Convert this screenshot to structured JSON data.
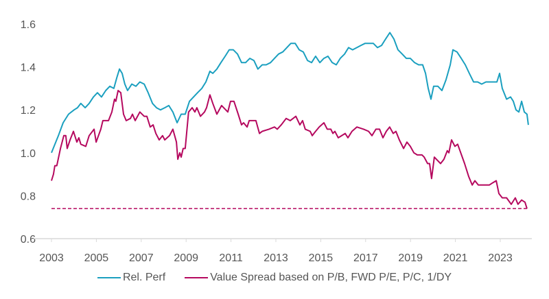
{
  "chart_data": {
    "type": "line",
    "title": "",
    "xlabel": "",
    "ylabel": "",
    "xlim": [
      2002.2,
      2024.5
    ],
    "ylim": [
      0.6,
      1.6
    ],
    "yticks": [
      "0.6",
      "0.8",
      "1.0",
      "1.2",
      "1.4",
      "1.6"
    ],
    "xticks": [
      "2003",
      "2005",
      "2007",
      "2009",
      "2011",
      "2013",
      "2015",
      "2017",
      "2019",
      "2021",
      "2023"
    ],
    "grid": false,
    "legend_position": "bottom",
    "series": [
      {
        "name": "Rel. Perf",
        "color": "#1a9fbf",
        "x": [
          2003.0,
          2003.31,
          2003.52,
          2003.76,
          2004.01,
          2004.16,
          2004.31,
          2004.5,
          2004.68,
          2004.87,
          2005.05,
          2005.23,
          2005.42,
          2005.6,
          2005.78,
          2005.91,
          2006.03,
          2006.15,
          2006.27,
          2006.39,
          2006.58,
          2006.76,
          2006.94,
          2007.13,
          2007.31,
          2007.5,
          2007.68,
          2007.86,
          2008.05,
          2008.23,
          2008.41,
          2008.6,
          2008.78,
          2008.96,
          2009.15,
          2009.33,
          2009.51,
          2009.7,
          2009.88,
          2010.06,
          2010.19,
          2010.37,
          2010.55,
          2010.74,
          2010.92,
          2011.1,
          2011.29,
          2011.47,
          2011.65,
          2011.84,
          2012.02,
          2012.2,
          2012.39,
          2012.57,
          2012.76,
          2012.94,
          2013.12,
          2013.31,
          2013.49,
          2013.67,
          2013.86,
          2014.04,
          2014.22,
          2014.41,
          2014.59,
          2014.77,
          2014.96,
          2015.14,
          2015.32,
          2015.51,
          2015.69,
          2015.87,
          2016.06,
          2016.24,
          2016.42,
          2016.61,
          2016.79,
          2016.98,
          2017.16,
          2017.34,
          2017.53,
          2017.71,
          2017.89,
          2018.08,
          2018.26,
          2018.44,
          2018.63,
          2018.81,
          2018.99,
          2019.18,
          2019.36,
          2019.54,
          2019.67,
          2019.79,
          2019.91,
          2020.03,
          2020.22,
          2020.4,
          2020.58,
          2020.77,
          2020.89,
          2021.07,
          2021.26,
          2021.44,
          2021.62,
          2021.81,
          2021.99,
          2022.17,
          2022.36,
          2022.54,
          2022.72,
          2022.85,
          2022.97,
          2023.09,
          2023.28,
          2023.46,
          2023.58,
          2023.7,
          2023.83,
          2023.95,
          2024.07,
          2024.19,
          2024.25
        ],
        "y": [
          1.0,
          1.08,
          1.14,
          1.18,
          1.2,
          1.21,
          1.23,
          1.21,
          1.23,
          1.26,
          1.28,
          1.26,
          1.29,
          1.31,
          1.3,
          1.35,
          1.39,
          1.37,
          1.32,
          1.29,
          1.32,
          1.31,
          1.33,
          1.32,
          1.28,
          1.23,
          1.21,
          1.2,
          1.21,
          1.22,
          1.19,
          1.14,
          1.18,
          1.18,
          1.24,
          1.26,
          1.28,
          1.3,
          1.33,
          1.38,
          1.37,
          1.39,
          1.42,
          1.45,
          1.48,
          1.48,
          1.46,
          1.42,
          1.42,
          1.44,
          1.43,
          1.39,
          1.41,
          1.41,
          1.42,
          1.44,
          1.46,
          1.47,
          1.49,
          1.51,
          1.51,
          1.48,
          1.47,
          1.43,
          1.42,
          1.45,
          1.42,
          1.44,
          1.45,
          1.42,
          1.41,
          1.44,
          1.46,
          1.49,
          1.48,
          1.49,
          1.5,
          1.51,
          1.51,
          1.51,
          1.49,
          1.5,
          1.53,
          1.56,
          1.53,
          1.48,
          1.46,
          1.44,
          1.44,
          1.42,
          1.41,
          1.41,
          1.37,
          1.3,
          1.25,
          1.31,
          1.31,
          1.29,
          1.34,
          1.41,
          1.48,
          1.47,
          1.44,
          1.41,
          1.37,
          1.33,
          1.33,
          1.32,
          1.33,
          1.33,
          1.33,
          1.33,
          1.37,
          1.3,
          1.25,
          1.26,
          1.24,
          1.2,
          1.19,
          1.24,
          1.19,
          1.18,
          1.13
        ]
      },
      {
        "name": "Value Spread based on P/B, FWD P/E, P/C, 1/DY",
        "color": "#b5085e",
        "x": [
          2003.0,
          2003.09,
          2003.15,
          2003.24,
          2003.4,
          2003.55,
          2003.64,
          2003.7,
          2003.83,
          2003.98,
          2004.13,
          2004.22,
          2004.31,
          2004.53,
          2004.68,
          2004.9,
          2004.99,
          2005.2,
          2005.29,
          2005.54,
          2005.69,
          2005.81,
          2005.87,
          2005.97,
          2006.09,
          2006.21,
          2006.33,
          2006.52,
          2006.61,
          2006.73,
          2006.94,
          2007.13,
          2007.25,
          2007.4,
          2007.53,
          2007.65,
          2007.8,
          2007.95,
          2008.05,
          2008.26,
          2008.41,
          2008.57,
          2008.63,
          2008.72,
          2008.78,
          2008.87,
          2008.96,
          2009.11,
          2009.27,
          2009.39,
          2009.48,
          2009.64,
          2009.82,
          2009.91,
          2010.06,
          2010.19,
          2010.37,
          2010.58,
          2010.86,
          2010.98,
          2011.13,
          2011.32,
          2011.47,
          2011.56,
          2011.72,
          2011.81,
          2012.11,
          2012.27,
          2012.39,
          2012.69,
          2012.94,
          2013.06,
          2013.24,
          2013.46,
          2013.64,
          2013.89,
          2014.07,
          2014.19,
          2014.31,
          2014.53,
          2014.62,
          2014.77,
          2014.93,
          2015.14,
          2015.29,
          2015.45,
          2015.54,
          2015.63,
          2015.78,
          2016.09,
          2016.21,
          2016.39,
          2016.61,
          2016.91,
          2017.13,
          2017.28,
          2017.46,
          2017.62,
          2017.77,
          2017.92,
          2018.07,
          2018.23,
          2018.35,
          2018.5,
          2018.69,
          2018.84,
          2018.99,
          2019.15,
          2019.3,
          2019.51,
          2019.61,
          2019.76,
          2019.85,
          2019.94,
          2020.06,
          2020.34,
          2020.49,
          2020.64,
          2020.71,
          2020.83,
          2020.98,
          2021.1,
          2021.41,
          2021.59,
          2021.75,
          2021.87,
          2022.02,
          2022.51,
          2022.66,
          2022.82,
          2022.94,
          2023.09,
          2023.28,
          2023.49,
          2023.67,
          2023.79,
          2023.95,
          2024.1,
          2024.19
        ],
        "y": [
          0.87,
          0.9,
          0.94,
          0.94,
          1.02,
          1.08,
          1.08,
          1.02,
          1.06,
          1.1,
          1.05,
          1.07,
          1.04,
          1.03,
          1.08,
          1.11,
          1.05,
          1.11,
          1.15,
          1.15,
          1.19,
          1.25,
          1.24,
          1.29,
          1.28,
          1.18,
          1.15,
          1.16,
          1.18,
          1.15,
          1.19,
          1.17,
          1.17,
          1.12,
          1.13,
          1.09,
          1.06,
          1.08,
          1.06,
          1.08,
          1.11,
          1.05,
          0.97,
          1.0,
          0.98,
          1.02,
          1.02,
          1.19,
          1.21,
          1.19,
          1.21,
          1.17,
          1.19,
          1.21,
          1.27,
          1.23,
          1.18,
          1.22,
          1.19,
          1.24,
          1.24,
          1.18,
          1.13,
          1.14,
          1.12,
          1.15,
          1.15,
          1.09,
          1.1,
          1.11,
          1.12,
          1.11,
          1.13,
          1.16,
          1.15,
          1.17,
          1.13,
          1.15,
          1.11,
          1.1,
          1.08,
          1.1,
          1.12,
          1.14,
          1.11,
          1.11,
          1.09,
          1.1,
          1.07,
          1.09,
          1.07,
          1.1,
          1.12,
          1.11,
          1.1,
          1.08,
          1.11,
          1.11,
          1.07,
          1.1,
          1.12,
          1.09,
          1.1,
          1.06,
          1.02,
          1.05,
          1.03,
          1.0,
          0.99,
          0.99,
          0.98,
          0.95,
          0.95,
          0.88,
          0.98,
          0.95,
          0.97,
          1.01,
          1.0,
          1.06,
          1.03,
          1.04,
          0.95,
          0.89,
          0.85,
          0.87,
          0.85,
          0.85,
          0.86,
          0.87,
          0.81,
          0.79,
          0.79,
          0.76,
          0.79,
          0.76,
          0.78,
          0.77,
          0.74
        ]
      }
    ],
    "reference_line": {
      "y": 0.74,
      "x_start": 2003.0,
      "x_end": 2024.19,
      "style": "dashed",
      "color": "#b5085e"
    }
  }
}
